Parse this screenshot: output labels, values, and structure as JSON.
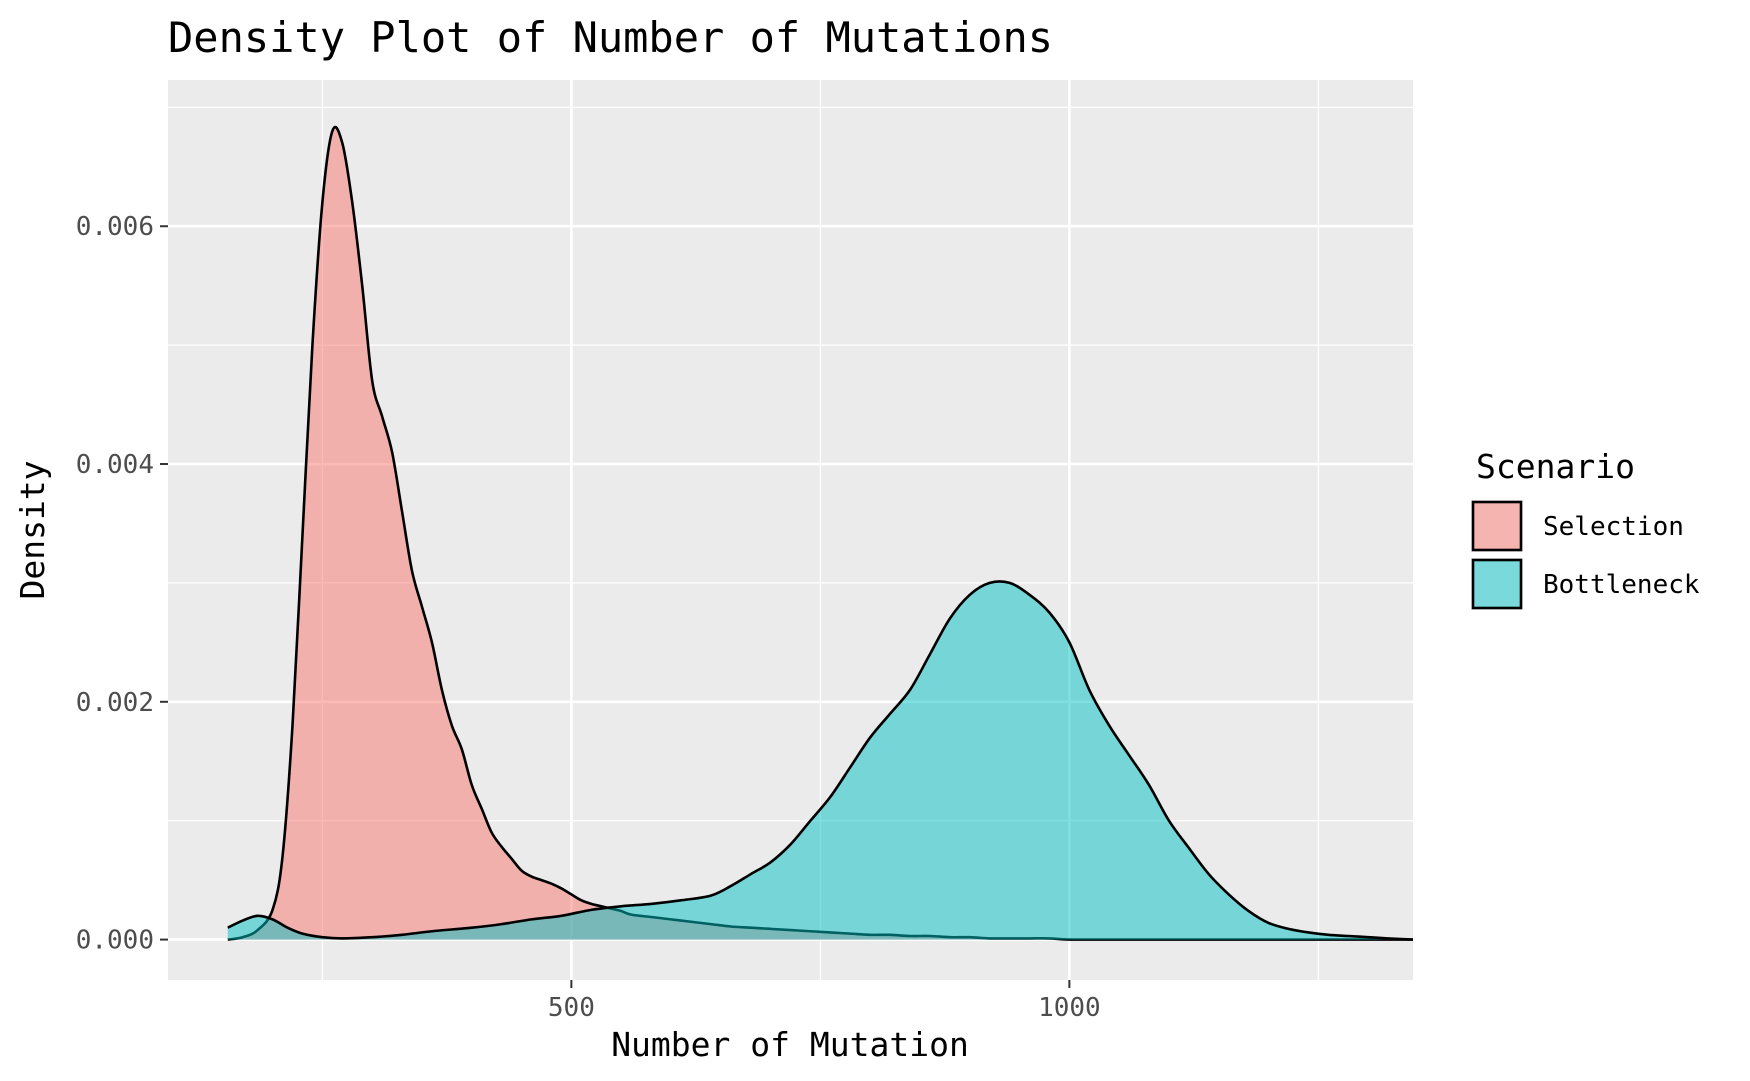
{
  "chart_data": {
    "type": "area",
    "title": "Density Plot of Number of Mutations",
    "xlabel": "Number of Mutation",
    "ylabel": "Density",
    "xlim": [
      95,
      1345
    ],
    "ylim": [
      -0.00034,
      0.00723
    ],
    "x_ticks": [
      500,
      1000
    ],
    "x_tick_labels": [
      "500",
      "1000"
    ],
    "x_minor_ticks": [
      250,
      750,
      1250
    ],
    "y_ticks": [
      0,
      0.002,
      0.004,
      0.006
    ],
    "y_tick_labels": [
      "0.000",
      "0.002",
      "0.004",
      "0.006"
    ],
    "y_minor_ticks": [
      0.001,
      0.003,
      0.005,
      0.007
    ],
    "grid": true,
    "legend": {
      "title": "Scenario",
      "position": "right"
    },
    "series": [
      {
        "name": "Selection",
        "color": "#F8766D",
        "x": [
          155,
          170,
          185,
          200,
          210,
          220,
          230,
          240,
          250,
          260,
          270,
          280,
          290,
          300,
          310,
          320,
          330,
          340,
          350,
          360,
          370,
          380,
          390,
          400,
          410,
          420,
          430,
          440,
          450,
          460,
          470,
          480,
          490,
          500,
          510,
          520,
          530,
          540,
          550,
          560,
          580,
          600,
          620,
          640,
          660,
          680,
          700,
          720,
          740,
          760,
          780,
          800,
          820,
          840,
          860,
          880,
          900,
          920,
          940,
          960,
          980,
          1000,
          1050,
          1100,
          1150,
          1200,
          1250,
          1300,
          1345
        ],
        "values": [
          0,
          2e-05,
          8e-05,
          0.00025,
          0.0007,
          0.0018,
          0.0034,
          0.005,
          0.0062,
          0.0068,
          0.0067,
          0.0062,
          0.0055,
          0.0047,
          0.0044,
          0.0041,
          0.0036,
          0.0031,
          0.0028,
          0.0025,
          0.0021,
          0.0018,
          0.0016,
          0.0013,
          0.0011,
          0.0009,
          0.00078,
          0.00068,
          0.00058,
          0.00053,
          0.0005,
          0.00047,
          0.00043,
          0.00038,
          0.00033,
          0.0003,
          0.00028,
          0.00026,
          0.00024,
          0.00021,
          0.00019,
          0.00017,
          0.00015,
          0.00013,
          0.00011,
          0.0001,
          9e-05,
          8e-05,
          7e-05,
          6e-05,
          5e-05,
          4e-05,
          4e-05,
          3e-05,
          3e-05,
          2e-05,
          2e-05,
          1e-05,
          1e-05,
          1e-05,
          1e-05,
          0,
          0,
          0,
          0,
          0,
          0,
          0,
          0
        ]
      },
      {
        "name": "Bottleneck",
        "color": "#00BFC4",
        "x": [
          155,
          170,
          185,
          200,
          215,
          230,
          250,
          270,
          300,
          330,
          360,
          400,
          430,
          460,
          490,
          520,
          550,
          580,
          610,
          640,
          660,
          680,
          700,
          720,
          740,
          760,
          780,
          800,
          820,
          840,
          860,
          880,
          900,
          920,
          940,
          960,
          980,
          1000,
          1020,
          1040,
          1060,
          1080,
          1100,
          1120,
          1140,
          1160,
          1180,
          1200,
          1220,
          1240,
          1260,
          1280,
          1300,
          1320,
          1345
        ],
        "values": [
          0.0001,
          0.00016,
          0.0002,
          0.00017,
          0.0001,
          5e-05,
          2e-05,
          1e-05,
          2e-05,
          4e-05,
          7e-05,
          0.0001,
          0.00013,
          0.00017,
          0.0002,
          0.00025,
          0.00028,
          0.0003,
          0.00033,
          0.00037,
          0.00045,
          0.00055,
          0.00065,
          0.0008,
          0.001,
          0.0012,
          0.00145,
          0.0017,
          0.0019,
          0.0021,
          0.0024,
          0.0027,
          0.0029,
          0.003,
          0.003,
          0.0029,
          0.00275,
          0.0025,
          0.0021,
          0.0018,
          0.00155,
          0.0013,
          0.001,
          0.00077,
          0.00055,
          0.00038,
          0.00024,
          0.00014,
          9e-05,
          6e-05,
          4e-05,
          3e-05,
          2e-05,
          1e-05,
          0
        ]
      }
    ]
  }
}
